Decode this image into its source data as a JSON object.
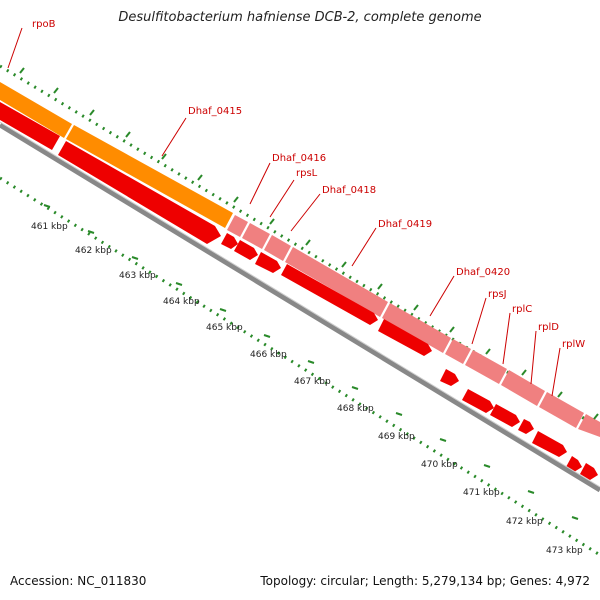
{
  "title": "Desulfitobacterium hafniense DCB-2, complete genome",
  "footer": {
    "accession": "Accession: NC_011830",
    "summary": "Topology: circular; Length: 5,279,134 bp; Genes: 4,972"
  },
  "genes": [
    "rpoB",
    "Dhaf_0415",
    "Dhaf_0416",
    "rpsL",
    "Dhaf_0418",
    "Dhaf_0419",
    "Dhaf_0420",
    "rpsJ",
    "rplC",
    "rplD",
    "rplW"
  ],
  "kbp_ticks": [
    "461 kbp",
    "462 kbp",
    "463 kbp",
    "464 kbp",
    "465 kbp",
    "466 kbp",
    "467 kbp",
    "468 kbp",
    "469 kbp",
    "470 kbp",
    "471 kbp",
    "472 kbp",
    "473 kbp"
  ],
  "colors": {
    "orange_feature": "#ff8c00",
    "pink_feature": "#f08080",
    "red_feature": "#ee0000",
    "backbone": "#888888",
    "dots": "#2a8a2a",
    "label": "#cc0000"
  }
}
